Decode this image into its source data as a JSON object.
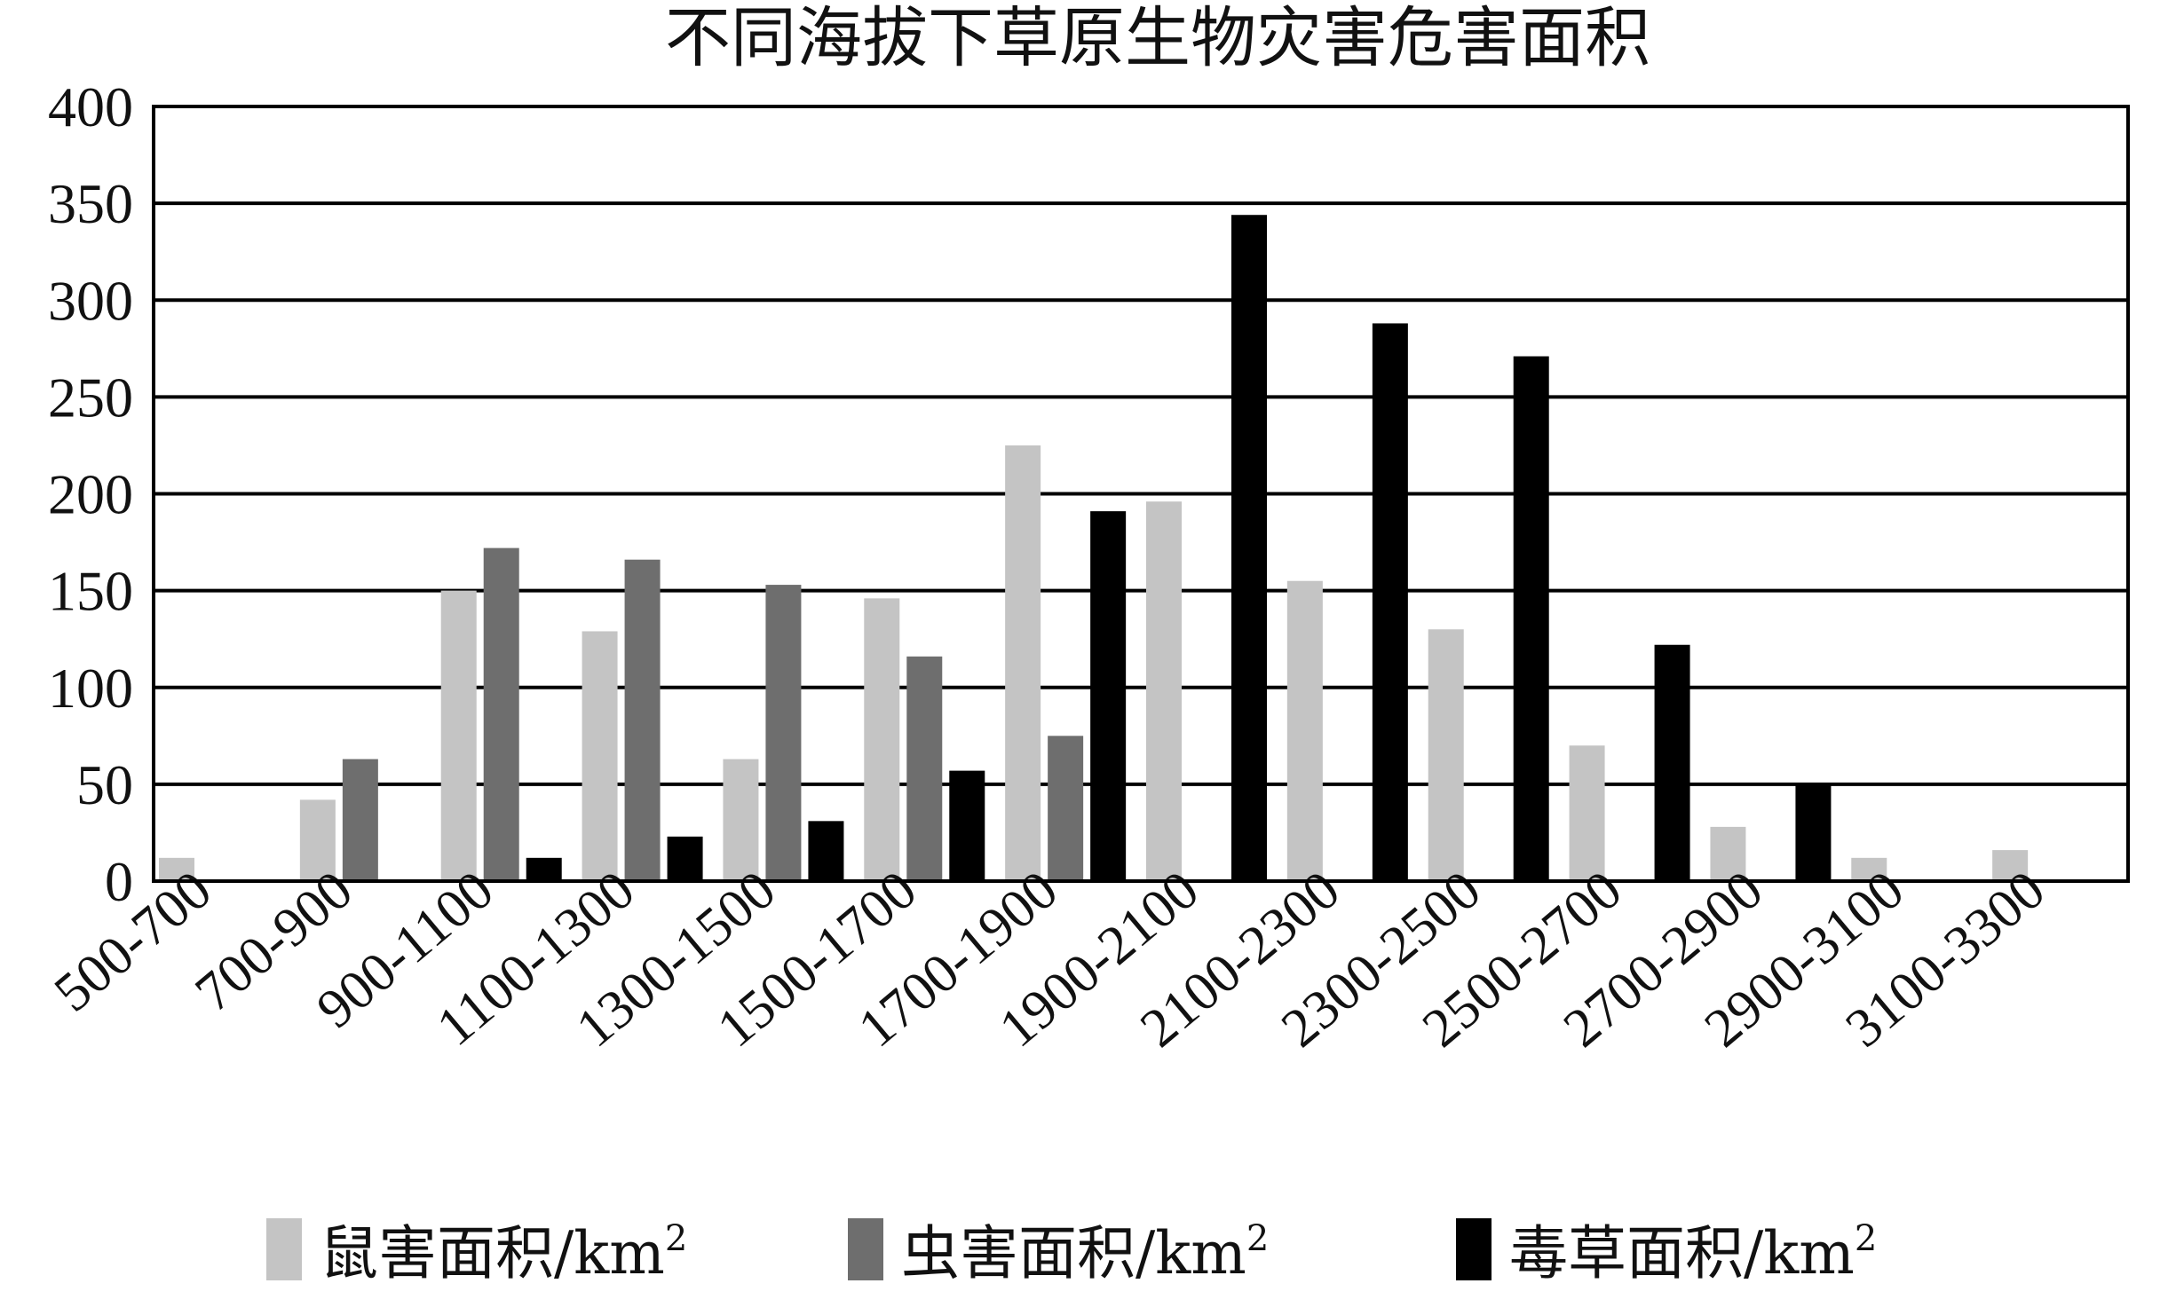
{
  "chart_data": {
    "type": "bar",
    "title": "不同海拔下草原生物灾害危害面积",
    "xlabel": "",
    "ylabel": "",
    "ylim": [
      0,
      400
    ],
    "yticks": [
      "0",
      "50",
      "100",
      "150",
      "200",
      "250",
      "300",
      "350",
      "400"
    ],
    "grid": true,
    "legend_position": "bottom",
    "categories": [
      "500-700",
      "700-900",
      "900-1100",
      "1100-1300",
      "1300-1500",
      "1500-1700",
      "1700-1900",
      "1900-2100",
      "2100-2300",
      "2300-2500",
      "2500-2700",
      "2700-2900",
      "2900-3100",
      "3100-3300"
    ],
    "series": [
      {
        "name": "鼠害面积/km",
        "sup": "2",
        "color": "#c4c4c4",
        "values": [
          12,
          42,
          150,
          129,
          63,
          146,
          225,
          196,
          155,
          130,
          70,
          28,
          12,
          16
        ]
      },
      {
        "name": "虫害面积/km",
        "sup": "2",
        "color": "#6e6e6e",
        "values": [
          0,
          63,
          172,
          166,
          153,
          116,
          75,
          0,
          0,
          0,
          0,
          0,
          0,
          0
        ]
      },
      {
        "name": "毒草面积/km",
        "sup": "2",
        "color": "#000000",
        "values": [
          0,
          0,
          12,
          23,
          31,
          57,
          191,
          344,
          288,
          271,
          122,
          50,
          0,
          0
        ]
      }
    ]
  }
}
